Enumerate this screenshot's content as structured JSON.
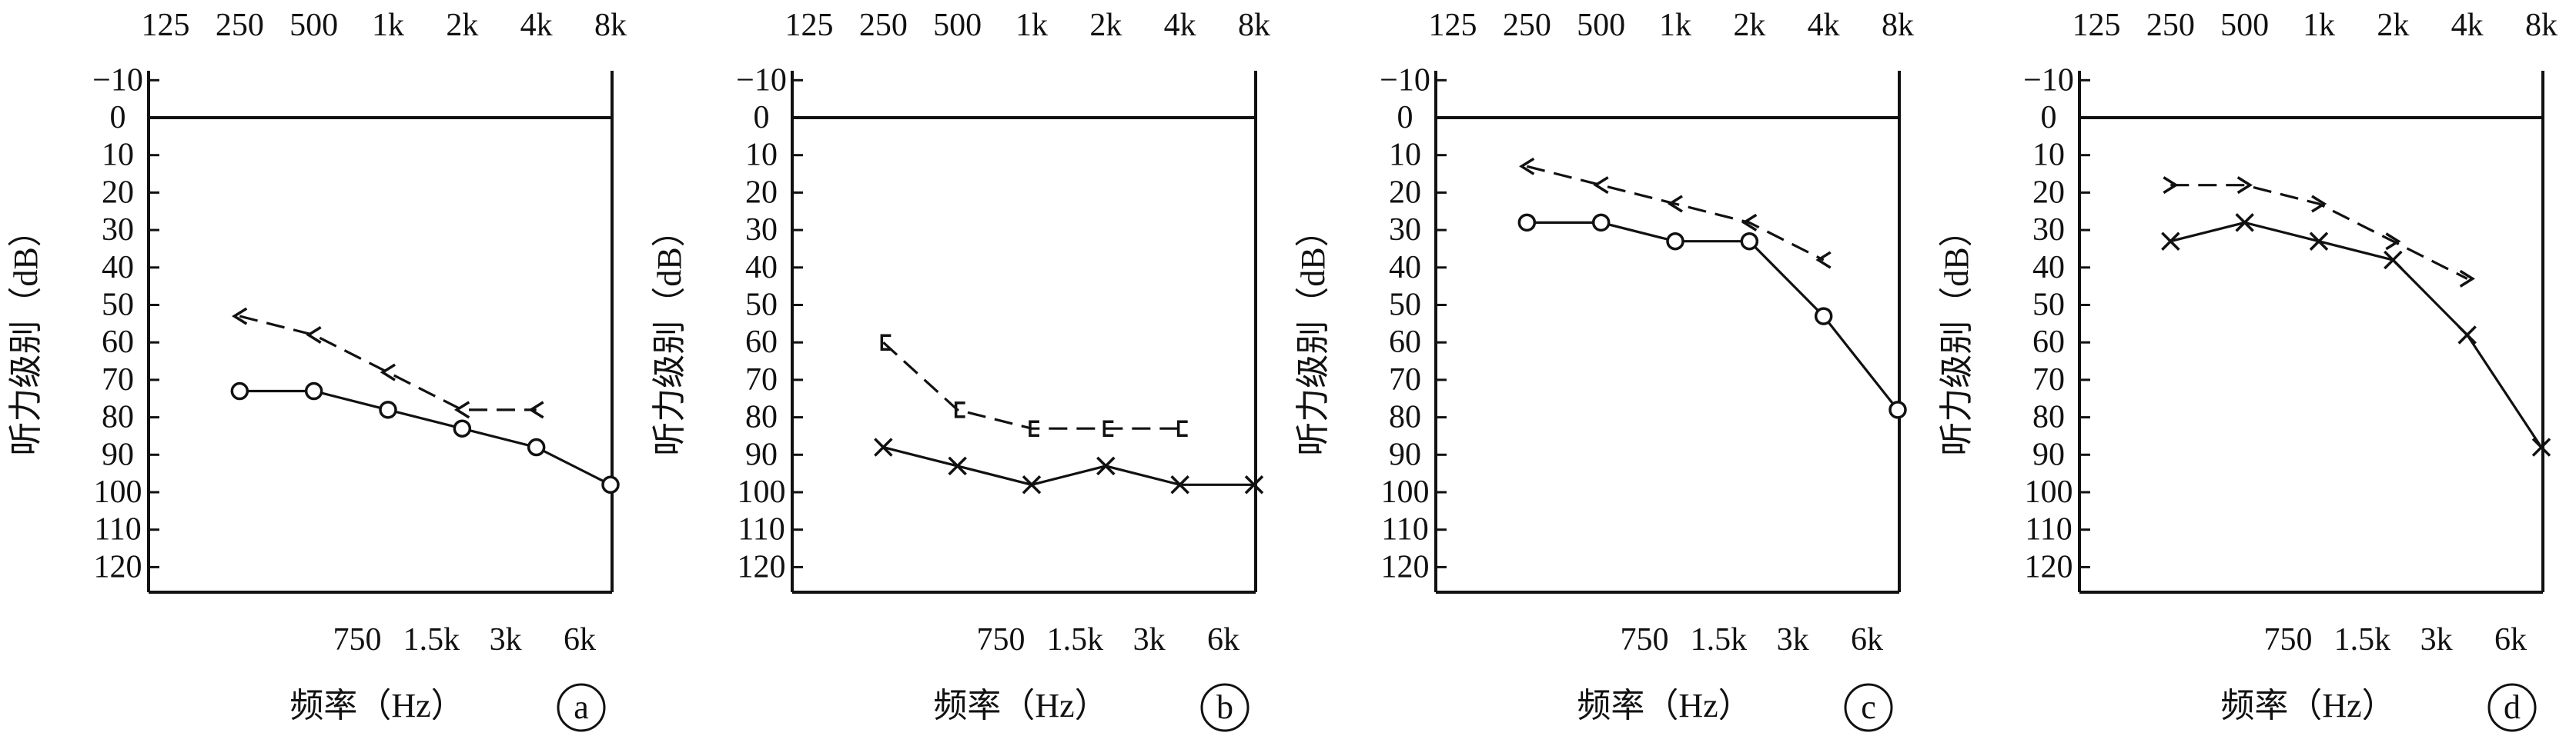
{
  "chart_data": [
    {
      "type": "line",
      "panel_label": "a",
      "top_ticks": [
        "125",
        "250",
        "500",
        "1k",
        "2k",
        "4k",
        "8k"
      ],
      "bottom_ticks": [
        "750",
        "1.5k",
        "3k",
        "6k"
      ],
      "y_ticks": [
        "−10",
        "0",
        "10",
        "20",
        "30",
        "40",
        "50",
        "60",
        "70",
        "80",
        "90",
        "100",
        "110",
        "120"
      ],
      "ylabel": "听力级别（dB）",
      "xlabel": "频率（Hz）",
      "ylim": [
        -10,
        120
      ],
      "y_inverted": true,
      "x_scale": "log2",
      "series": [
        {
          "marker": "circle",
          "line": "solid",
          "x": [
            250,
            500,
            1000,
            2000,
            4000,
            8000
          ],
          "y": [
            73,
            73,
            78,
            83,
            88,
            98
          ]
        },
        {
          "marker": "bone-right",
          "line": "dashed",
          "x": [
            250,
            500,
            1000,
            2000,
            4000
          ],
          "y": [
            53,
            58,
            68,
            78,
            78
          ]
        }
      ]
    },
    {
      "type": "line",
      "panel_label": "b",
      "top_ticks": [
        "125",
        "250",
        "500",
        "1k",
        "2k",
        "4k",
        "8k"
      ],
      "bottom_ticks": [
        "750",
        "1.5k",
        "3k",
        "6k"
      ],
      "y_ticks": [
        "−10",
        "0",
        "10",
        "20",
        "30",
        "40",
        "50",
        "60",
        "70",
        "80",
        "90",
        "100",
        "110",
        "120"
      ],
      "ylabel": "听力级别（dB）",
      "xlabel": "频率（Hz）",
      "ylim": [
        -10,
        120
      ],
      "y_inverted": true,
      "x_scale": "log2",
      "series": [
        {
          "marker": "x",
          "line": "solid",
          "x": [
            250,
            500,
            1000,
            2000,
            4000,
            8000
          ],
          "y": [
            88,
            93,
            98,
            93,
            98,
            98
          ]
        },
        {
          "marker": "bracket-left",
          "line": "dashed",
          "x": [
            250,
            500,
            1000,
            2000,
            4000
          ],
          "y": [
            60,
            78,
            83,
            83,
            83
          ]
        }
      ]
    },
    {
      "type": "line",
      "panel_label": "c",
      "top_ticks": [
        "125",
        "250",
        "500",
        "1k",
        "2k",
        "4k",
        "8k"
      ],
      "bottom_ticks": [
        "750",
        "1.5k",
        "3k",
        "6k"
      ],
      "y_ticks": [
        "−10",
        "0",
        "10",
        "20",
        "30",
        "40",
        "50",
        "60",
        "70",
        "80",
        "90",
        "100",
        "110",
        "120"
      ],
      "ylabel": "听力级别（dB）",
      "xlabel": "频率（Hz）",
      "ylim": [
        -10,
        120
      ],
      "y_inverted": true,
      "x_scale": "log2",
      "series": [
        {
          "marker": "circle",
          "line": "solid",
          "x": [
            250,
            500,
            1000,
            2000,
            4000,
            8000
          ],
          "y": [
            28,
            28,
            33,
            33,
            53,
            78
          ]
        },
        {
          "marker": "bone-right",
          "line": "dashed",
          "x": [
            250,
            500,
            1000,
            2000,
            4000
          ],
          "y": [
            13,
            18,
            23,
            28,
            38
          ]
        }
      ]
    },
    {
      "type": "line",
      "panel_label": "d",
      "top_ticks": [
        "125",
        "250",
        "500",
        "1k",
        "2k",
        "4k",
        "8k"
      ],
      "bottom_ticks": [
        "750",
        "1.5k",
        "3k",
        "6k"
      ],
      "y_ticks": [
        "−10",
        "0",
        "10",
        "20",
        "30",
        "40",
        "50",
        "60",
        "70",
        "80",
        "90",
        "100",
        "110",
        "120"
      ],
      "ylabel": "听力级别（dB）",
      "xlabel": "频率（Hz）",
      "ylim": [
        -10,
        120
      ],
      "y_inverted": true,
      "x_scale": "log2",
      "series": [
        {
          "marker": "x",
          "line": "solid",
          "x": [
            250,
            500,
            1000,
            2000,
            4000,
            8000
          ],
          "y": [
            33,
            28,
            33,
            38,
            58,
            88
          ]
        },
        {
          "marker": "bone-left",
          "line": "dashed",
          "x": [
            250,
            500,
            1000,
            2000,
            4000
          ],
          "y": [
            18,
            18,
            23,
            33,
            43
          ]
        }
      ]
    }
  ]
}
